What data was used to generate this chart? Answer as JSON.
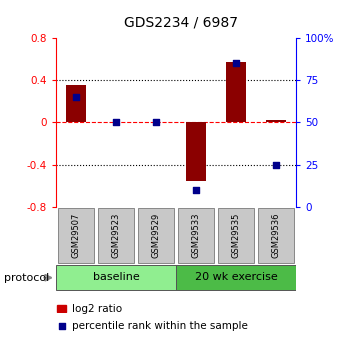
{
  "title": "GDS2234 / 6987",
  "samples": [
    "GSM29507",
    "GSM29523",
    "GSM29529",
    "GSM29533",
    "GSM29535",
    "GSM29536"
  ],
  "log2_ratio": [
    0.35,
    0.0,
    0.0,
    -0.55,
    0.57,
    0.02
  ],
  "percentile_rank": [
    65,
    50,
    50,
    10,
    85,
    25
  ],
  "ylim_left": [
    -0.8,
    0.8
  ],
  "ylim_right": [
    0,
    100
  ],
  "bar_color": "#8B0000",
  "dot_color": "#00008B",
  "sample_box_color": "#C8C8C8",
  "groups": [
    {
      "label": "baseline",
      "start": 0,
      "end": 2,
      "color": "#90EE90"
    },
    {
      "label": "20 wk exercise",
      "start": 3,
      "end": 5,
      "color": "#4CBB47"
    }
  ],
  "protocol_label": "protocol",
  "legend_items": [
    {
      "label": "log2 ratio",
      "color": "#CC0000",
      "marker": "s"
    },
    {
      "label": "percentile rank within the sample",
      "color": "#00008B",
      "marker": "s"
    }
  ],
  "hlines": [
    0.4,
    0.0,
    -0.4
  ],
  "hline_styles": [
    "dotted",
    "dashed",
    "dotted"
  ],
  "hline_colors": [
    "black",
    "red",
    "black"
  ],
  "right_yticks": [
    0,
    25,
    50,
    75,
    100
  ],
  "right_yticklabels": [
    "0",
    "25",
    "50",
    "75",
    "100%"
  ],
  "left_yticks": [
    -0.8,
    -0.4,
    0.0,
    0.4,
    0.8
  ],
  "left_yticklabels": [
    "-0.8",
    "-0.4",
    "0",
    "0.4",
    "0.8"
  ],
  "bar_width": 0.5,
  "title_fontsize": 10,
  "tick_fontsize": 7.5,
  "sample_fontsize": 6,
  "group_fontsize": 8,
  "legend_fontsize": 7.5,
  "protocol_fontsize": 8
}
